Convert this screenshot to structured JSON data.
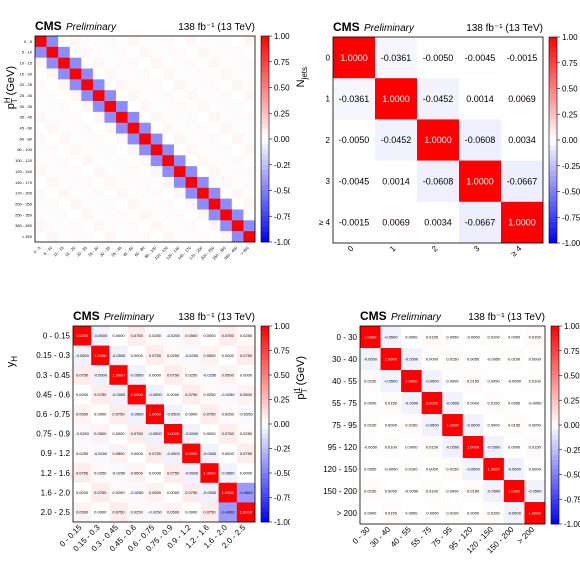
{
  "chart_data": [
    {
      "type": "heatmap",
      "header": {
        "experiment": "CMS",
        "status": "Preliminary",
        "lumi": "138 fb⁻¹ (13 TeV)"
      },
      "ylabel": "p_T^H (GeV)",
      "row_labels": [
        "0 - 5",
        "5 - 10",
        "10 - 15",
        "15 - 20",
        "20 - 25",
        "25 - 30",
        "30 - 35",
        "35 - 45",
        "45 - 60",
        "60 - 80",
        "80 - 100",
        "100 - 120",
        "120 - 140",
        "140 - 170",
        "170 - 200",
        "200 - 250",
        "250 - 350",
        "350 - 450",
        "> 450"
      ],
      "col_labels": [
        "0 - 5",
        "5 - 10",
        "10 - 15",
        "15 - 20",
        "20 - 25",
        "25 - 30",
        "30 - 35",
        "35 - 45",
        "45 - 60",
        "60 - 80",
        "80 - 100",
        "100 - 120",
        "120 - 140",
        "140 - 170",
        "170 - 200",
        "200 - 250",
        "250 - 350",
        "350 - 450",
        "> 450"
      ],
      "neighbor_corr": -0.45,
      "far_corr": 0.02,
      "show_values": false,
      "zlim": [
        -1,
        1
      ],
      "ztick_labels": [
        "1.00",
        "0.75",
        "0.50",
        "0.25",
        "0.00",
        "-0.25",
        "-0.50",
        "-0.75",
        "-1.00"
      ],
      "colors": {
        "neg": "#0000ff",
        "zero": "#ffffff",
        "pos": "#ff0000"
      }
    },
    {
      "type": "heatmap",
      "header": {
        "experiment": "CMS",
        "status": "Preliminary",
        "lumi": "138 fb⁻¹ (13 TeV)"
      },
      "ylabel": "N_jets",
      "row_labels": [
        "0",
        "1",
        "2",
        "3",
        "≥ 4"
      ],
      "col_labels": [
        "0",
        "1",
        "2",
        "3",
        "≥ 4"
      ],
      "matrix": [
        [
          1.0,
          -0.0361,
          -0.005,
          -0.0045,
          -0.0015
        ],
        [
          -0.0361,
          1.0,
          -0.0452,
          0.0014,
          0.0069
        ],
        [
          -0.005,
          -0.0452,
          1.0,
          -0.0608,
          0.0034
        ],
        [
          -0.0045,
          0.0014,
          -0.0608,
          1.0,
          -0.0667
        ],
        [
          -0.0015,
          0.0069,
          0.0034,
          -0.0667,
          1.0
        ]
      ],
      "cell_text": [
        [
          "1.0000",
          "-0.0361",
          "-0.0050",
          "-0.0045",
          "-0.0015"
        ],
        [
          "-0.0361",
          "1.0000",
          "-0.0452",
          "0.0014",
          "0.0069"
        ],
        [
          "-0.0050",
          "-0.0452",
          "1.0000",
          "-0.0608",
          "0.0034"
        ],
        [
          "-0.0045",
          "0.0014",
          "-0.0608",
          "1.0000",
          "-0.0667"
        ],
        [
          "-0.0015",
          "0.0069",
          "0.0034",
          "-0.0667",
          "1.0000"
        ]
      ],
      "show_values": true,
      "zlim": [
        -1,
        1
      ],
      "ztick_labels": [
        "1.00",
        "0.75",
        "0.50",
        "0.25",
        "0.00",
        "-0.25",
        "-0.50",
        "-0.75",
        "-1.00"
      ],
      "colors": {
        "neg": "#0000ff",
        "zero": "#ffffff",
        "pos": "#ff0000"
      }
    },
    {
      "type": "heatmap",
      "header": {
        "experiment": "CMS",
        "status": "Preliminary",
        "lumi": "138 fb⁻¹ (13 TeV)"
      },
      "ylabel": "y_H",
      "row_labels": [
        "0 - 0.15",
        "0.15 - 0.3",
        "0.3 - 0.45",
        "0.45 - 0.6",
        "0.6 - 0.75",
        "0.75 - 0.9",
        "0.9 - 1.2",
        "1.2 - 1.6",
        "1.6 - 2.0",
        "2.0 - 2.5"
      ],
      "col_labels": [
        "0 - 0.15",
        "0.15 - 0.3",
        "0.3 - 0.45",
        "0.45 - 0.6",
        "0.6 - 0.75",
        "0.75 - 0.9",
        "0.9 - 1.2",
        "1.2 - 1.6",
        "1.6 - 2.0",
        "2.0 - 2.5"
      ],
      "neighbor_corr": -0.05,
      "far_corr": 0.05,
      "special": [
        [
          8,
          9,
          -0.4
        ],
        [
          9,
          8,
          -0.4
        ]
      ],
      "show_values": true,
      "zlim": [
        -1,
        1
      ],
      "ztick_labels": [
        "1.00",
        "0.75",
        "0.50",
        "0.25",
        "0.00",
        "-0.25",
        "-0.50",
        "-0.75",
        "-1.00"
      ],
      "colors": {
        "neg": "#0000ff",
        "zero": "#ffffff",
        "pos": "#ff0000"
      }
    },
    {
      "type": "heatmap",
      "header": {
        "experiment": "CMS",
        "status": "Preliminary",
        "lumi": "138 fb⁻¹ (13 TeV)"
      },
      "ylabel": "p_T^j1 (GeV)",
      "row_labels": [
        "0 - 30",
        "30 - 40",
        "40 - 55",
        "55 - 75",
        "75 - 95",
        "95 - 120",
        "120 - 150",
        "150 - 200",
        "> 200"
      ],
      "col_labels": [
        "0 - 30",
        "30 - 40",
        "40 - 55",
        "55 - 75",
        "75 - 95",
        "95 - 120",
        "120 - 150",
        "150 - 200",
        "> 200"
      ],
      "neighbor_corr": -0.05,
      "far_corr": 0.01,
      "show_values": true,
      "zlim": [
        -1,
        1
      ],
      "ztick_labels": [
        "1.00",
        "0.75",
        "0.50",
        "0.25",
        "0.00",
        "-0.25",
        "-0.50",
        "-0.75",
        "-1.00"
      ],
      "colors": {
        "neg": "#0000ff",
        "zero": "#ffffff",
        "pos": "#ff0000"
      }
    }
  ]
}
